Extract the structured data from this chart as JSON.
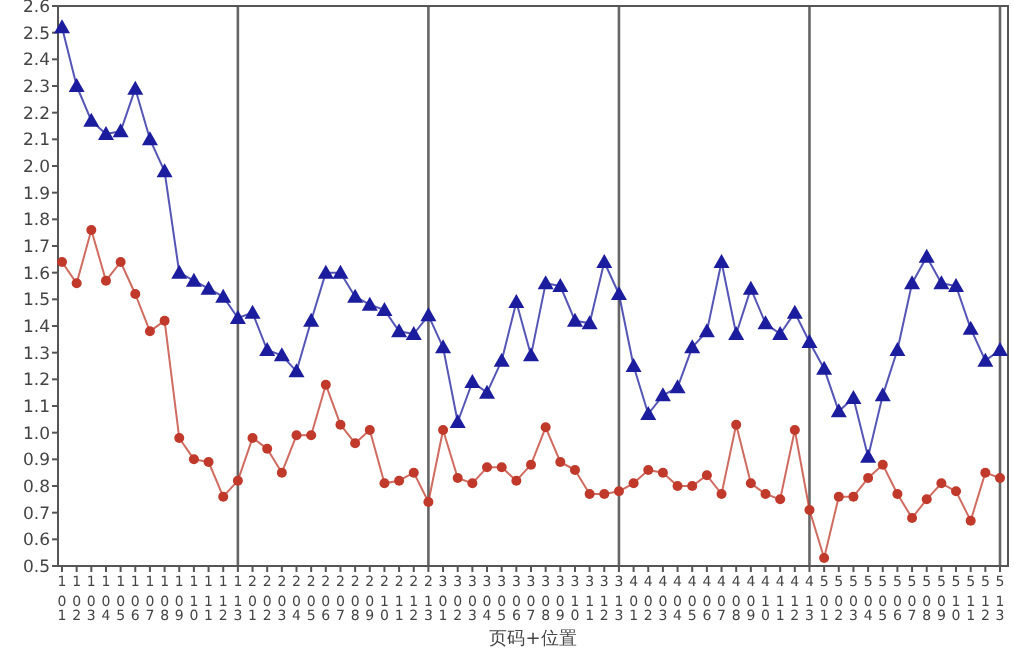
{
  "chart_data": {
    "type": "line",
    "xlabel": "页码+位置",
    "categories": [
      "101",
      "102",
      "103",
      "104",
      "105",
      "106",
      "107",
      "108",
      "109",
      "110",
      "111",
      "112",
      "113",
      "201",
      "202",
      "203",
      "204",
      "205",
      "206",
      "207",
      "208",
      "209",
      "210",
      "211",
      "212",
      "213",
      "301",
      "302",
      "303",
      "304",
      "305",
      "306",
      "307",
      "308",
      "309",
      "310",
      "311",
      "312",
      "313",
      "401",
      "402",
      "403",
      "404",
      "405",
      "406",
      "407",
      "408",
      "409",
      "410",
      "411",
      "412",
      "413",
      "501",
      "502",
      "503",
      "504",
      "505",
      "506",
      "507",
      "508",
      "509",
      "510",
      "511",
      "512",
      "513"
    ],
    "series": [
      {
        "color": "#1c1c9e",
        "marker": "triangle",
        "values": [
          2.52,
          2.3,
          2.17,
          2.12,
          2.13,
          2.29,
          2.1,
          1.98,
          1.6,
          1.57,
          1.54,
          1.51,
          1.43,
          1.45,
          1.31,
          1.29,
          1.23,
          1.42,
          1.6,
          1.6,
          1.51,
          1.48,
          1.46,
          1.38,
          1.37,
          1.44,
          1.32,
          1.04,
          1.19,
          1.15,
          1.27,
          1.49,
          1.29,
          1.56,
          1.55,
          1.42,
          1.41,
          1.64,
          1.52,
          1.25,
          1.07,
          1.14,
          1.17,
          1.32,
          1.38,
          1.64,
          1.37,
          1.54,
          1.41,
          1.37,
          1.45,
          1.34,
          1.24,
          1.08,
          1.13,
          0.91,
          1.14,
          1.31,
          1.56,
          1.66,
          1.56,
          1.55,
          1.39,
          1.27,
          1.31
        ]
      },
      {
        "color": "#c0392b",
        "marker": "circle",
        "values": [
          1.64,
          1.56,
          1.76,
          1.57,
          1.64,
          1.52,
          1.38,
          1.42,
          0.98,
          0.9,
          0.89,
          0.76,
          0.82,
          0.98,
          0.94,
          0.85,
          0.99,
          0.99,
          1.18,
          1.03,
          0.96,
          1.01,
          0.81,
          0.82,
          0.85,
          0.74,
          1.01,
          0.83,
          0.81,
          0.87,
          0.87,
          0.82,
          0.88,
          1.02,
          0.89,
          0.86,
          0.77,
          0.77,
          0.78,
          0.81,
          0.86,
          0.85,
          0.8,
          0.8,
          0.84,
          0.77,
          1.03,
          0.81,
          0.77,
          0.75,
          1.01,
          0.71,
          0.53,
          0.76,
          0.76,
          0.83,
          0.88,
          0.77,
          0.68,
          0.75,
          0.81,
          0.78,
          0.67,
          0.85,
          0.83
        ]
      }
    ],
    "ylim": [
      0.5,
      2.6
    ],
    "yticks": [
      0.5,
      0.6,
      0.7,
      0.8,
      0.9,
      {
        "value": 1.0,
        "label": "1.0"
      },
      1.1,
      1.2,
      1.3,
      1.4,
      1.5,
      1.6,
      1.7,
      1.8,
      1.9,
      {
        "value": 2.0,
        "label": "2.0"
      },
      2.1,
      2.2,
      2.3,
      2.4,
      2.5,
      2.6
    ],
    "ref_lines": [
      {
        "axis": "x",
        "value": "113",
        "color": "#666666"
      },
      {
        "axis": "x",
        "value": "213",
        "color": "#666666"
      },
      {
        "axis": "x",
        "value": "313",
        "color": "#666666"
      },
      {
        "axis": "x",
        "value": "413",
        "color": "#666666"
      },
      {
        "axis": "x",
        "value": "513",
        "color": "#666666"
      }
    ],
    "grid": false
  }
}
